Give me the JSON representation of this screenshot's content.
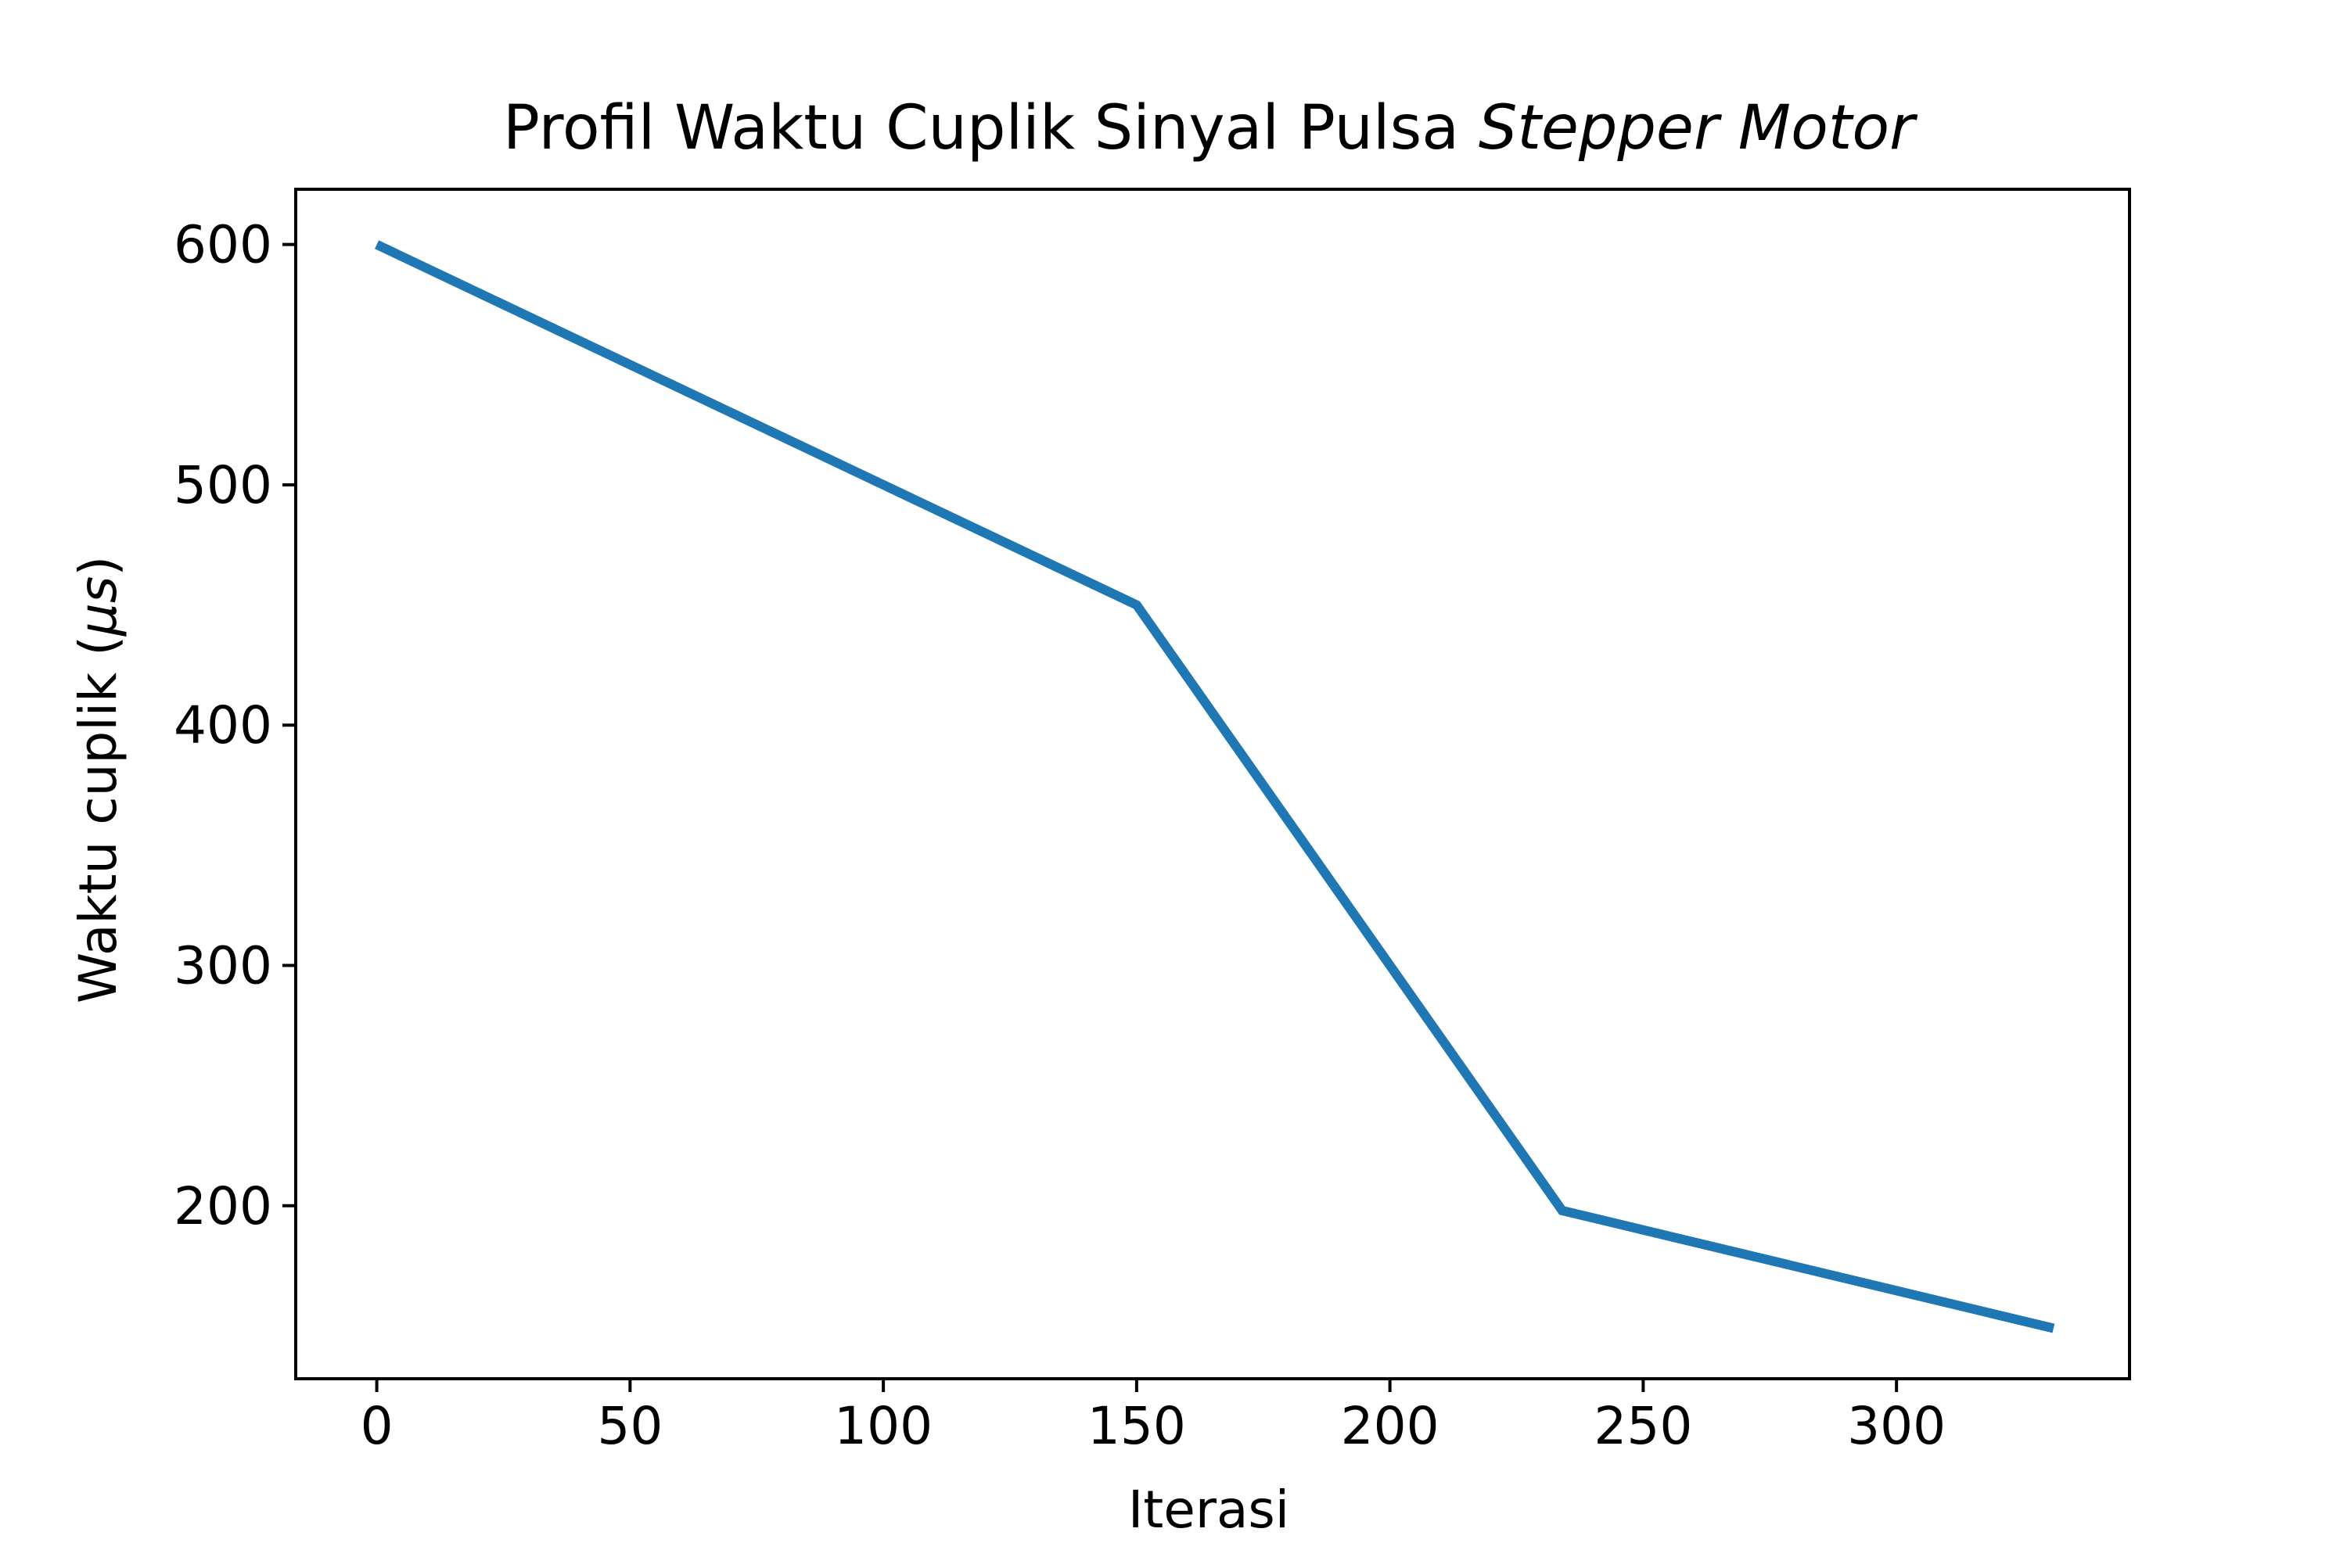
{
  "chart_data": {
    "type": "line",
    "title": "Profil Waktu Cuplik Sinyal Pulsa",
    "title_italic": "Stepper Motor",
    "xlabel": "Iterasi",
    "ylabel": "Waktu cuplik (",
    "ylabel_symbol": "μs",
    "ylabel_close": ")",
    "xlim": [
      -16,
      346
    ],
    "ylim": [
      128,
      623
    ],
    "xticks": [
      0,
      50,
      100,
      150,
      200,
      250,
      300
    ],
    "yticks": [
      200,
      300,
      400,
      500,
      600
    ],
    "grid": false,
    "series": [
      {
        "color": "#1f77b4",
        "x": [
          0,
          150,
          234,
          331
        ],
        "y": [
          600,
          450,
          198,
          149
        ]
      }
    ]
  }
}
